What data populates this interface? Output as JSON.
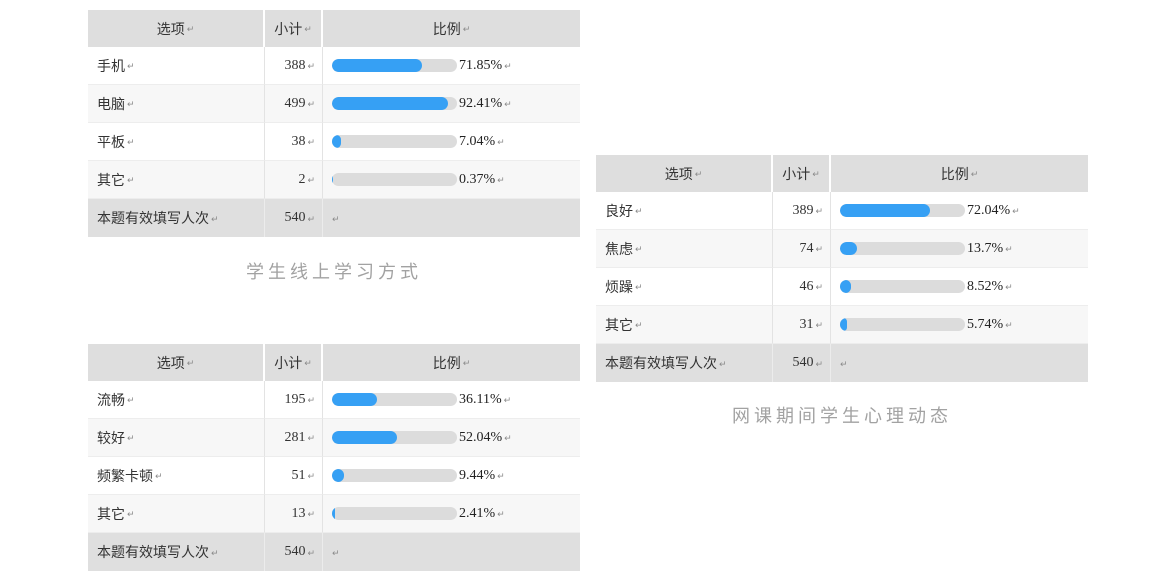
{
  "marks": {
    "pilcrow": "↵"
  },
  "colors": {
    "accent": "#36a0f4",
    "track": "#dcdcdc",
    "header_bg": "#dedede",
    "stripe_bg": "#f7f7f7",
    "footer_bg": "#dfdfdf",
    "title_text": "#a2a2a2"
  },
  "headers": {
    "option": "选项",
    "count": "小计",
    "ratio": "比例"
  },
  "tables": [
    {
      "title": "学生线上学习方式",
      "rows": [
        {
          "label": "手机",
          "count": "388",
          "percent": 71.85,
          "percent_label": "71.85%"
        },
        {
          "label": "电脑",
          "count": "499",
          "percent": 92.41,
          "percent_label": "92.41%"
        },
        {
          "label": "平板",
          "count": "38",
          "percent": 7.04,
          "percent_label": "7.04%"
        },
        {
          "label": "其它",
          "count": "2",
          "percent": 0.37,
          "percent_label": "0.37%"
        }
      ],
      "footer": {
        "label": "本题有效填写人次",
        "count": "540"
      }
    },
    {
      "title": "",
      "rows": [
        {
          "label": "流畅",
          "count": "195",
          "percent": 36.11,
          "percent_label": "36.11%"
        },
        {
          "label": "较好",
          "count": "281",
          "percent": 52.04,
          "percent_label": "52.04%"
        },
        {
          "label": "频繁卡顿",
          "count": "51",
          "percent": 9.44,
          "percent_label": "9.44%"
        },
        {
          "label": "其它",
          "count": "13",
          "percent": 2.41,
          "percent_label": "2.41%"
        }
      ],
      "footer": {
        "label": "本题有效填写人次",
        "count": "540"
      }
    },
    {
      "title": "网课期间学生心理动态",
      "rows": [
        {
          "label": "良好",
          "count": "389",
          "percent": 72.04,
          "percent_label": "72.04%"
        },
        {
          "label": "焦虑",
          "count": "74",
          "percent": 13.7,
          "percent_label": "13.7%"
        },
        {
          "label": "烦躁",
          "count": "46",
          "percent": 8.52,
          "percent_label": "8.52%"
        },
        {
          "label": "其它",
          "count": "31",
          "percent": 5.74,
          "percent_label": "5.74%"
        }
      ],
      "footer": {
        "label": "本题有效填写人次",
        "count": "540"
      }
    }
  ],
  "chart_data": [
    {
      "type": "bar",
      "title": "学生线上学习方式",
      "categories": [
        "手机",
        "电脑",
        "平板",
        "其它"
      ],
      "values": [
        71.85,
        92.41,
        7.04,
        0.37
      ],
      "counts": [
        388,
        499,
        38,
        2
      ],
      "total_responses": 540,
      "xlabel": "",
      "ylabel": "比例 (%)",
      "xlim": [
        0,
        100
      ],
      "orientation": "horizontal",
      "legend": false,
      "grid": false
    },
    {
      "type": "bar",
      "title": "",
      "categories": [
        "流畅",
        "较好",
        "频繁卡顿",
        "其它"
      ],
      "values": [
        36.11,
        52.04,
        9.44,
        2.41
      ],
      "counts": [
        195,
        281,
        51,
        13
      ],
      "total_responses": 540,
      "xlabel": "",
      "ylabel": "比例 (%)",
      "xlim": [
        0,
        100
      ],
      "orientation": "horizontal",
      "legend": false,
      "grid": false
    },
    {
      "type": "bar",
      "title": "网课期间学生心理动态",
      "categories": [
        "良好",
        "焦虑",
        "烦躁",
        "其它"
      ],
      "values": [
        72.04,
        13.7,
        8.52,
        5.74
      ],
      "counts": [
        389,
        74,
        46,
        31
      ],
      "total_responses": 540,
      "xlabel": "",
      "ylabel": "比例 (%)",
      "xlim": [
        0,
        100
      ],
      "orientation": "horizontal",
      "legend": false,
      "grid": false
    }
  ]
}
